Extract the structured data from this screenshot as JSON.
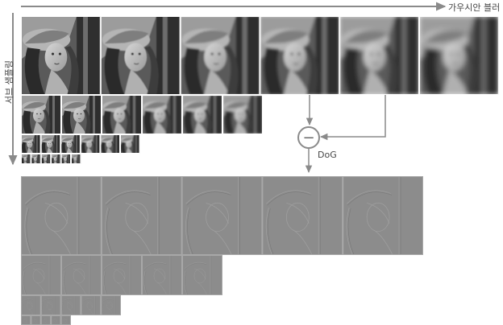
{
  "labels": {
    "gaussian_blur": "가우시안 블러",
    "subsampling": "서브 샘플링",
    "dog": "DoG",
    "minus_symbol": "−"
  },
  "pyramid": {
    "gaussian_octaves": [
      {
        "octave": 1,
        "images": 6
      },
      {
        "octave": 2,
        "images": 6
      },
      {
        "octave": 3,
        "images": 6
      },
      {
        "octave": 4,
        "images": 6
      }
    ],
    "dog_octaves": [
      {
        "octave": 1,
        "images": 5
      },
      {
        "octave": 2,
        "images": 5
      },
      {
        "octave": 3,
        "images": 5
      },
      {
        "octave": 4,
        "images": 5
      }
    ]
  },
  "colors": {
    "arrow": "#8a8a8a",
    "dog_gray": "#8c8c8c",
    "photo_dark": "#3a3a3a"
  }
}
